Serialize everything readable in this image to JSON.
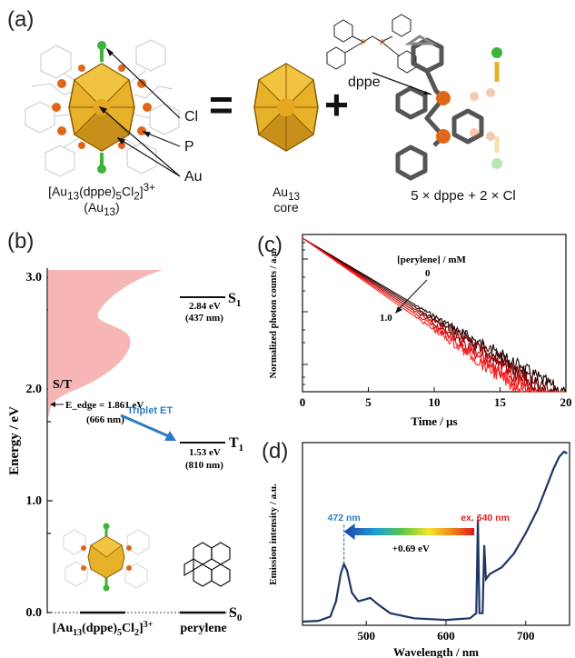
{
  "panel_a": {
    "label": "(a)",
    "equals": "=",
    "plus": "+",
    "atom_labels": {
      "cl": "Cl",
      "p": "P",
      "au": "Au"
    },
    "cluster_formula": "[Au13(dppe)5Cl2]3+",
    "cluster_abbrev": "(Au13)",
    "core_label_line1": "Au13",
    "core_label_line2": "core",
    "ligand_label": "5 × dppe + 2 × Cl",
    "dppe_label": "dppe",
    "colors": {
      "gold": "#d9a21c",
      "orange": "#e0661a",
      "green": "#3ab53a"
    }
  },
  "panel_b": {
    "label": "(b)",
    "y_axis_label": "Energy / eV",
    "y_ticks": [
      "0.0",
      "1.0",
      "2.0",
      "3.0"
    ],
    "st_label": "S/T",
    "edge_label": "E_edge = 1.861 eV",
    "edge_nm": "(666 nm)",
    "s1_label": "S1",
    "s1_energy": "2.84 eV",
    "s1_nm": "(437 nm)",
    "t1_label": "T1",
    "t1_energy": "1.53 eV",
    "t1_nm": "(810 nm)",
    "s0_label": "S0",
    "transfer_label": "Triplet ET",
    "cluster_name": "[Au13(dppe)5Cl2]3+",
    "perylene_name": "perylene",
    "colors": {
      "band": "#f7b6b6",
      "arrow": "#2b7cc2"
    }
  },
  "panel_c": {
    "label": "(c)",
    "chart_data": {
      "type": "line",
      "xlabel": "Time / μs",
      "ylabel": "Normalized photon counts / a.u.",
      "x_ticks": [
        "0",
        "5",
        "10",
        "15",
        "20"
      ],
      "xlim": [
        0,
        20
      ],
      "yscale": "log",
      "legend_title": "[perylene] / mM",
      "legend_top": "0",
      "legend_bottom": "1.0",
      "series": [
        {
          "lifetime_us": 3.35,
          "color": "#1a0000"
        },
        {
          "lifetime_us": 3.25,
          "color": "#4a0000"
        },
        {
          "lifetime_us": 3.15,
          "color": "#800000"
        },
        {
          "lifetime_us": 3.05,
          "color": "#b00000"
        },
        {
          "lifetime_us": 2.95,
          "color": "#e01010"
        },
        {
          "lifetime_us": 2.85,
          "color": "#ff2020"
        }
      ]
    }
  },
  "panel_d": {
    "label": "(d)",
    "chart_data": {
      "type": "line",
      "xlabel": "Wavelength / nm",
      "ylabel": "Emission intensity / a.u.",
      "x_ticks": [
        "500",
        "600",
        "700"
      ],
      "xlim": [
        420,
        755
      ],
      "x": [
        420,
        440,
        455,
        462,
        468,
        472,
        476,
        482,
        490,
        498,
        505,
        515,
        530,
        560,
        600,
        630,
        638,
        640,
        642,
        646,
        648,
        650,
        655,
        670,
        685,
        700,
        715,
        725,
        735,
        742,
        748,
        752
      ],
      "y": [
        0.0,
        0.005,
        0.03,
        0.12,
        0.28,
        0.34,
        0.3,
        0.17,
        0.12,
        0.13,
        0.14,
        0.1,
        0.05,
        0.02,
        0.01,
        0.02,
        0.05,
        0.6,
        0.05,
        0.05,
        0.45,
        0.25,
        0.28,
        0.32,
        0.4,
        0.52,
        0.66,
        0.78,
        0.9,
        0.97,
        1.0,
        0.99
      ],
      "line_color": "#1f3566",
      "peak_label": "472 nm",
      "excitation_label": "ex. 640 nm",
      "shift_label": "+0.69 eV",
      "colors": {
        "peak": "#2b7cc2",
        "excitation": "#e02020"
      }
    }
  }
}
